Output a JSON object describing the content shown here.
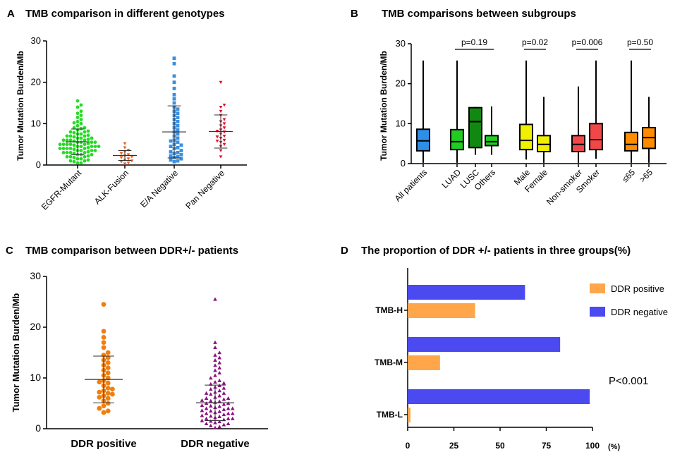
{
  "chart_data": [
    {
      "panel": "A",
      "type": "scatter",
      "title": "TMB comparison in different genotypes",
      "ylabel": "Tumor Mutation Burden/Mb",
      "ylim": [
        0,
        30
      ],
      "yticks": [
        0,
        10,
        20,
        30
      ],
      "groups": [
        {
          "name": "EGFR-Mutant",
          "color": "#22dd22",
          "marker": "circle",
          "mean": 5.6,
          "sd": 3.1,
          "values": [
            0.5,
            0.5,
            0.8,
            1.0,
            1.0,
            1.2,
            1.5,
            1.5,
            1.8,
            2.0,
            2.0,
            2.0,
            2.2,
            2.5,
            2.5,
            2.5,
            2.8,
            3.0,
            3.0,
            3.0,
            3.0,
            3.2,
            3.5,
            3.5,
            3.5,
            3.5,
            3.8,
            4.0,
            4.0,
            4.0,
            4.0,
            4.0,
            4.2,
            4.5,
            4.5,
            4.5,
            4.5,
            4.5,
            4.8,
            5.0,
            5.0,
            5.0,
            5.0,
            5.0,
            5.2,
            5.5,
            5.5,
            5.5,
            5.5,
            5.8,
            6.0,
            6.0,
            6.0,
            6.0,
            6.2,
            6.5,
            6.5,
            6.5,
            6.8,
            7.0,
            7.0,
            7.0,
            7.2,
            7.5,
            7.5,
            7.8,
            8.0,
            8.0,
            8.2,
            8.5,
            8.8,
            9.0,
            9.0,
            9.5,
            10.0,
            10.2,
            10.5,
            11.0,
            11.5,
            12.0,
            12.5,
            13.0,
            14.0,
            14.5,
            15.5
          ]
        },
        {
          "name": "ALK-Fusion",
          "color": "#e86020",
          "marker": "triangle-down",
          "mean": 2.3,
          "sd": 1.2,
          "values": [
            0.3,
            0.5,
            0.8,
            1.0,
            1.2,
            1.5,
            1.8,
            2.0,
            2.2,
            2.5,
            2.8,
            3.2,
            3.6,
            4.2,
            5.2
          ]
        },
        {
          "name": "E/A Negative",
          "color": "#3a8fe0",
          "marker": "square",
          "mean": 8.0,
          "sd": 6.3,
          "values": [
            0.8,
            1.0,
            1.2,
            1.5,
            1.8,
            2.0,
            2.2,
            2.5,
            2.8,
            3.0,
            3.2,
            3.5,
            4.0,
            4.2,
            4.5,
            4.8,
            5.0,
            5.5,
            5.8,
            6.0,
            6.5,
            7.0,
            7.5,
            8.0,
            8.5,
            9.0,
            9.5,
            10.0,
            10.5,
            11.0,
            11.5,
            12.0,
            12.5,
            13.0,
            13.5,
            14.0,
            15.0,
            16.0,
            17.0,
            18.5,
            20.0,
            21.5,
            24.5,
            25.8
          ]
        },
        {
          "name": "Pan Negative",
          "color": "#e0102e",
          "marker": "triangle-down",
          "mean": 8.1,
          "sd": 4.0,
          "values": [
            2.0,
            3.5,
            4.5,
            5.0,
            5.5,
            5.8,
            6.0,
            6.5,
            6.8,
            7.0,
            7.5,
            8.0,
            8.2,
            8.5,
            9.0,
            9.5,
            10.0,
            10.5,
            11.0,
            12.0,
            13.0,
            14.0,
            14.5,
            20.0
          ]
        }
      ]
    },
    {
      "panel": "B",
      "type": "box",
      "title": "TMB comparisons between subgroups",
      "ylabel": "Tumor Mutation Burden/Mb",
      "ylim": [
        0,
        30
      ],
      "yticks": [
        0,
        10,
        20,
        30
      ],
      "boxes": [
        {
          "label": "All patients",
          "color": "#2f8fe8",
          "min": 0.2,
          "q1": 3.2,
          "median": 5.7,
          "q3": 8.6,
          "max": 25.8
        },
        {
          "label": "LUAD",
          "color": "#22cc22",
          "min": 0.2,
          "q1": 3.5,
          "median": 5.5,
          "q3": 8.5,
          "max": 25.8
        },
        {
          "label": "LUSC",
          "color": "#118811",
          "min": 2.2,
          "q1": 4.0,
          "median": 10.5,
          "q3": 14.0,
          "max": 14.2
        },
        {
          "label": "Others",
          "color": "#22cc22",
          "min": 2.2,
          "q1": 4.5,
          "median": 5.5,
          "q3": 7.0,
          "max": 14.3
        },
        {
          "label": "Male",
          "color": "#f0f000",
          "min": 1.0,
          "q1": 3.5,
          "median": 5.8,
          "q3": 9.8,
          "max": 25.8
        },
        {
          "label": "Female",
          "color": "#f0f000",
          "min": 0.2,
          "q1": 3.0,
          "median": 4.8,
          "q3": 7.0,
          "max": 16.7
        },
        {
          "label": "Non-smoker",
          "color": "#f04848",
          "min": 0.2,
          "q1": 3.0,
          "median": 4.8,
          "q3": 7.0,
          "max": 19.3
        },
        {
          "label": "Smoker",
          "color": "#f04848",
          "min": 1.2,
          "q1": 3.5,
          "median": 6.0,
          "q3": 10.0,
          "max": 25.8
        },
        {
          "label": "≤65",
          "color": "#ff8c00",
          "min": 0.2,
          "q1": 3.2,
          "median": 4.8,
          "q3": 7.8,
          "max": 25.8
        },
        {
          "label": ">65",
          "color": "#ff8c00",
          "min": 0.2,
          "q1": 3.8,
          "median": 6.5,
          "q3": 9.0,
          "max": 16.7
        }
      ],
      "annotations": [
        {
          "text": "p=0.19",
          "from": 1,
          "to": 3
        },
        {
          "text": "p=0.02",
          "from": 4,
          "to": 5
        },
        {
          "text": "p=0.006",
          "from": 6,
          "to": 7
        },
        {
          "text": "p=0.50",
          "from": 8,
          "to": 9
        }
      ]
    },
    {
      "panel": "C",
      "type": "scatter",
      "title": "TMB comparison between DDR+/- patients",
      "ylabel": "Tumor Mutation Burden/Mb",
      "ylim": [
        0,
        30
      ],
      "yticks": [
        0,
        10,
        20,
        30
      ],
      "groups": [
        {
          "name": "DDR positive",
          "color": "#f07f10",
          "marker": "circle",
          "mean": 9.7,
          "sd": 4.6,
          "values": [
            3.2,
            3.5,
            4.0,
            4.5,
            5.0,
            5.5,
            6.0,
            6.2,
            6.5,
            6.8,
            7.0,
            7.2,
            7.5,
            7.8,
            8.0,
            8.5,
            9.0,
            9.2,
            9.5,
            10.0,
            10.5,
            11.0,
            11.5,
            12.0,
            12.5,
            13.0,
            13.5,
            14.0,
            14.5,
            15.0,
            16.0,
            17.0,
            18.0,
            19.2,
            24.5
          ]
        },
        {
          "name": "DDR negative",
          "color": "#8a1080",
          "marker": "triangle-up",
          "mean": 5.1,
          "sd": 3.5,
          "values": [
            0.2,
            0.4,
            0.6,
            0.8,
            1.0,
            1.0,
            1.2,
            1.4,
            1.5,
            1.6,
            1.8,
            2.0,
            2.0,
            2.0,
            2.2,
            2.4,
            2.5,
            2.6,
            2.8,
            3.0,
            3.0,
            3.0,
            3.2,
            3.4,
            3.5,
            3.6,
            3.8,
            4.0,
            4.0,
            4.0,
            4.2,
            4.4,
            4.5,
            4.6,
            4.8,
            5.0,
            5.0,
            5.2,
            5.4,
            5.5,
            5.6,
            5.8,
            6.0,
            6.0,
            6.2,
            6.5,
            6.8,
            7.0,
            7.0,
            7.2,
            7.5,
            7.8,
            8.0,
            8.2,
            8.5,
            8.8,
            9.0,
            9.2,
            9.5,
            10.0,
            10.5,
            11.0,
            11.5,
            12.0,
            12.5,
            13.0,
            13.5,
            14.0,
            14.5,
            15.0,
            16.0,
            17.0,
            25.5
          ]
        }
      ],
      "xlabels": [
        "DDR positive",
        "DDR negative"
      ]
    },
    {
      "panel": "D",
      "type": "bar",
      "orientation": "horizontal",
      "title": "The proportion of DDR +/- patients in three groups(%)",
      "categories": [
        "TMB-H",
        "TMB-M",
        "TMB-L"
      ],
      "series": [
        {
          "name": "DDR negative",
          "color": "#4a4af0",
          "values": [
            63.5,
            82.5,
            98.5
          ]
        },
        {
          "name": "DDR positive",
          "color": "#ffa64a",
          "values": [
            36.5,
            17.5,
            1.5
          ]
        }
      ],
      "xlim": [
        0,
        100
      ],
      "xticks": [
        0,
        25,
        50,
        75,
        100
      ],
      "xunit": "(%)",
      "annotation": "P<0.001",
      "legend_position": "top-right"
    }
  ]
}
